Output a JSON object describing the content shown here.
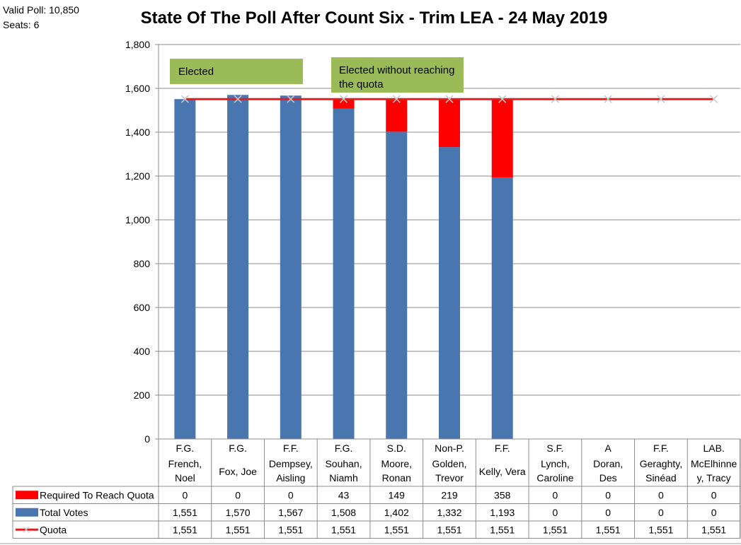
{
  "header": {
    "valid_poll": "Valid Poll: 10,850",
    "seats": "Seats: 6"
  },
  "colors": {
    "total_votes": "#4a76b0",
    "required": "#ff0000",
    "quota": "#e02020",
    "annotation_bg": "#9bbb59",
    "grid": "#8c8c8c"
  },
  "chart_data": {
    "type": "bar",
    "stacked": true,
    "title": "State Of The Poll After Count Six - Trim LEA - 24 May 2019",
    "ylim": [
      0,
      1800
    ],
    "yticks": [
      0,
      200,
      400,
      600,
      800,
      1000,
      1200,
      1400,
      1600,
      1800
    ],
    "ytick_labels": [
      "0",
      "200",
      "400",
      "600",
      "800",
      "1,000",
      "1,200",
      "1,400",
      "1,600",
      "1,800"
    ],
    "grid": true,
    "categories": [
      {
        "party": "F.G.",
        "name_line1": "French,",
        "name_line2": "Noel"
      },
      {
        "party": "F.G.",
        "name_line1": "Fox, Joe",
        "name_line2": ""
      },
      {
        "party": "F.F.",
        "name_line1": "Dempsey,",
        "name_line2": "Aisling"
      },
      {
        "party": "F.G.",
        "name_line1": "Souhan,",
        "name_line2": "Niamh"
      },
      {
        "party": "S.D.",
        "name_line1": "Moore,",
        "name_line2": "Ronan"
      },
      {
        "party": "Non-P.",
        "name_line1": "Golden,",
        "name_line2": "Trevor"
      },
      {
        "party": "F.F.",
        "name_line1": "Kelly, Vera",
        "name_line2": ""
      },
      {
        "party": "S.F.",
        "name_line1": "Lynch,",
        "name_line2": "Caroline"
      },
      {
        "party": "A",
        "name_line1": "Doran,",
        "name_line2": "Des"
      },
      {
        "party": "F.F.",
        "name_line1": "Geraghty,",
        "name_line2": "Sinéad"
      },
      {
        "party": "LAB.",
        "name_line1": "McElhinne",
        "name_line2": "y, Tracy"
      }
    ],
    "series": [
      {
        "name": "Required To Reach Quota",
        "kind": "bar",
        "values": [
          0,
          0,
          0,
          43,
          149,
          219,
          358,
          0,
          0,
          0,
          0
        ],
        "labels": [
          "0",
          "0",
          "0",
          "43",
          "149",
          "219",
          "358",
          "0",
          "0",
          "0",
          "0"
        ]
      },
      {
        "name": "Total Votes",
        "kind": "bar",
        "values": [
          1551,
          1570,
          1567,
          1508,
          1402,
          1332,
          1193,
          0,
          0,
          0,
          0
        ],
        "labels": [
          "1,551",
          "1,570",
          "1,567",
          "1,508",
          "1,402",
          "1,332",
          "1,193",
          "0",
          "0",
          "0",
          "0"
        ]
      },
      {
        "name": "Quota",
        "kind": "line",
        "values": [
          1551,
          1551,
          1551,
          1551,
          1551,
          1551,
          1551,
          1551,
          1551,
          1551,
          1551
        ],
        "labels": [
          "1,551",
          "1,551",
          "1,551",
          "1,551",
          "1,551",
          "1,551",
          "1,551",
          "1,551",
          "1,551",
          "1,551",
          "1,551"
        ]
      }
    ],
    "annotations": [
      {
        "text_lines": [
          "Elected"
        ]
      },
      {
        "text_lines": [
          "Elected without reaching",
          "the quota"
        ]
      }
    ]
  }
}
